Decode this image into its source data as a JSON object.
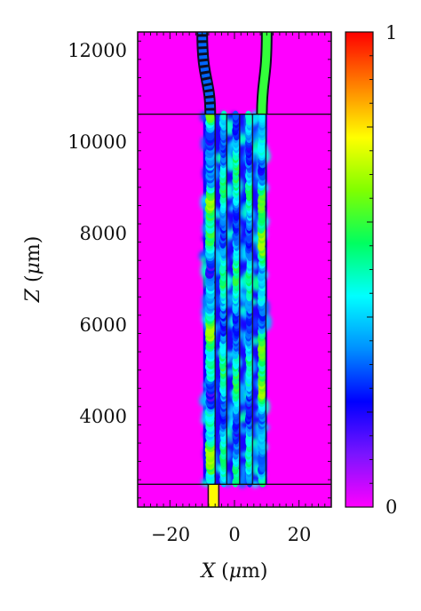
{
  "chart_data": {
    "type": "heatmap",
    "title": "",
    "colormap": [
      "#ff00ff",
      "#7a14ff",
      "#0000ff",
      "#0090ff",
      "#00ffff",
      "#00ff60",
      "#80ff00",
      "#ffff00",
      "#ff8000",
      "#ff0000"
    ],
    "xlim": [
      -30,
      30
    ],
    "ylim": [
      2000,
      12400
    ],
    "zlim": [
      0,
      1
    ],
    "xticks": [
      -20,
      0,
      20
    ],
    "yticks": [
      4000,
      6000,
      8000,
      10000,
      12000
    ],
    "xtick_labels": [
      "−20",
      "0",
      "20"
    ],
    "ytick_labels": [
      "4000",
      "6000",
      "8000",
      "10000",
      "12000"
    ],
    "colorbar_labels": [
      "1",
      "0"
    ],
    "xlabel": {
      "var": "X",
      "rest": " (",
      "mu": "μ",
      "unit": "m)"
    },
    "ylabel": {
      "var": "Z",
      "rest": " (",
      "mu": "μ",
      "unit": "m)"
    },
    "boundaries_z": [
      2500,
      10600
    ],
    "waveguides": {
      "input": {
        "x": -6.5,
        "z_range": [
          2000,
          2500
        ]
      },
      "array_x": [
        -7.5,
        -3.5,
        0.5,
        4.5,
        8.5
      ],
      "array_z_range": [
        2500,
        10600
      ],
      "output_left": {
        "x_start": -7.5,
        "x_end": -10,
        "z_range": [
          10600,
          12400
        ]
      },
      "output_right": {
        "x_start": 8.5,
        "x_end": 10,
        "z_range": [
          10600,
          12400
        ]
      }
    }
  }
}
